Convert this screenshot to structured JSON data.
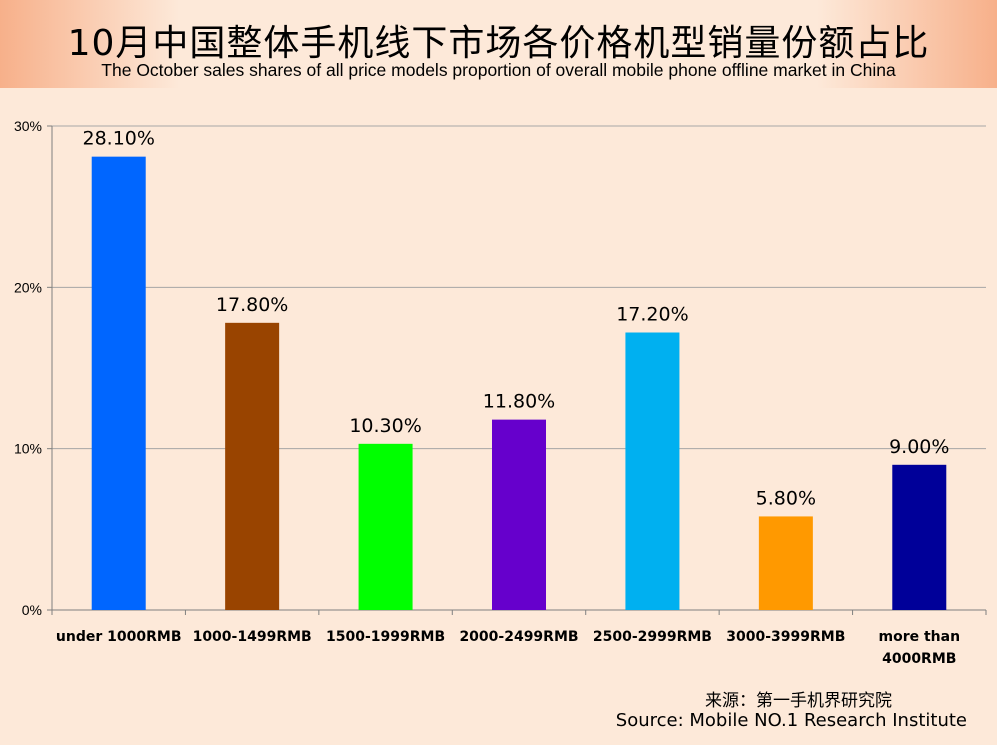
{
  "header": {
    "title_cn": "10月中国整体手机线下市场各价格机型销量份额占比",
    "title_en": "The October sales shares of all price models proportion of overall mobile phone offline market in China"
  },
  "footer": {
    "source_cn": "来源：第一手机界研究院",
    "source_en": "Source: Mobile NO.1 Research Institute"
  },
  "chart_data": {
    "type": "bar",
    "title": "10月中国整体手机线下市场各价格机型销量份额占比",
    "subtitle": "The October sales shares of all price models proportion of overall mobile phone offline market in China",
    "categories": [
      [
        "under 1000RMB"
      ],
      [
        "1000-1499RMB"
      ],
      [
        "1500-1999RMB"
      ],
      [
        "2000-2499RMB"
      ],
      [
        "2500-2999RMB"
      ],
      [
        "3000-3999RMB"
      ],
      [
        "more than",
        "4000RMB"
      ]
    ],
    "values": [
      28.1,
      17.8,
      10.3,
      11.8,
      17.2,
      5.8,
      9.0
    ],
    "data_labels": [
      "28.10%",
      "17.80%",
      "10.30%",
      "11.80%",
      "17.20%",
      "5.80%",
      "9.00%"
    ],
    "colors": [
      "#0066ff",
      "#994400",
      "#00ff00",
      "#6600cc",
      "#00b0f0",
      "#ff9900",
      "#000099"
    ],
    "yticks": [
      "0%",
      "10%",
      "20%",
      "30%"
    ],
    "ylim": [
      0,
      30
    ],
    "grid": true,
    "legend": "none",
    "xlabel": "",
    "ylabel": ""
  }
}
